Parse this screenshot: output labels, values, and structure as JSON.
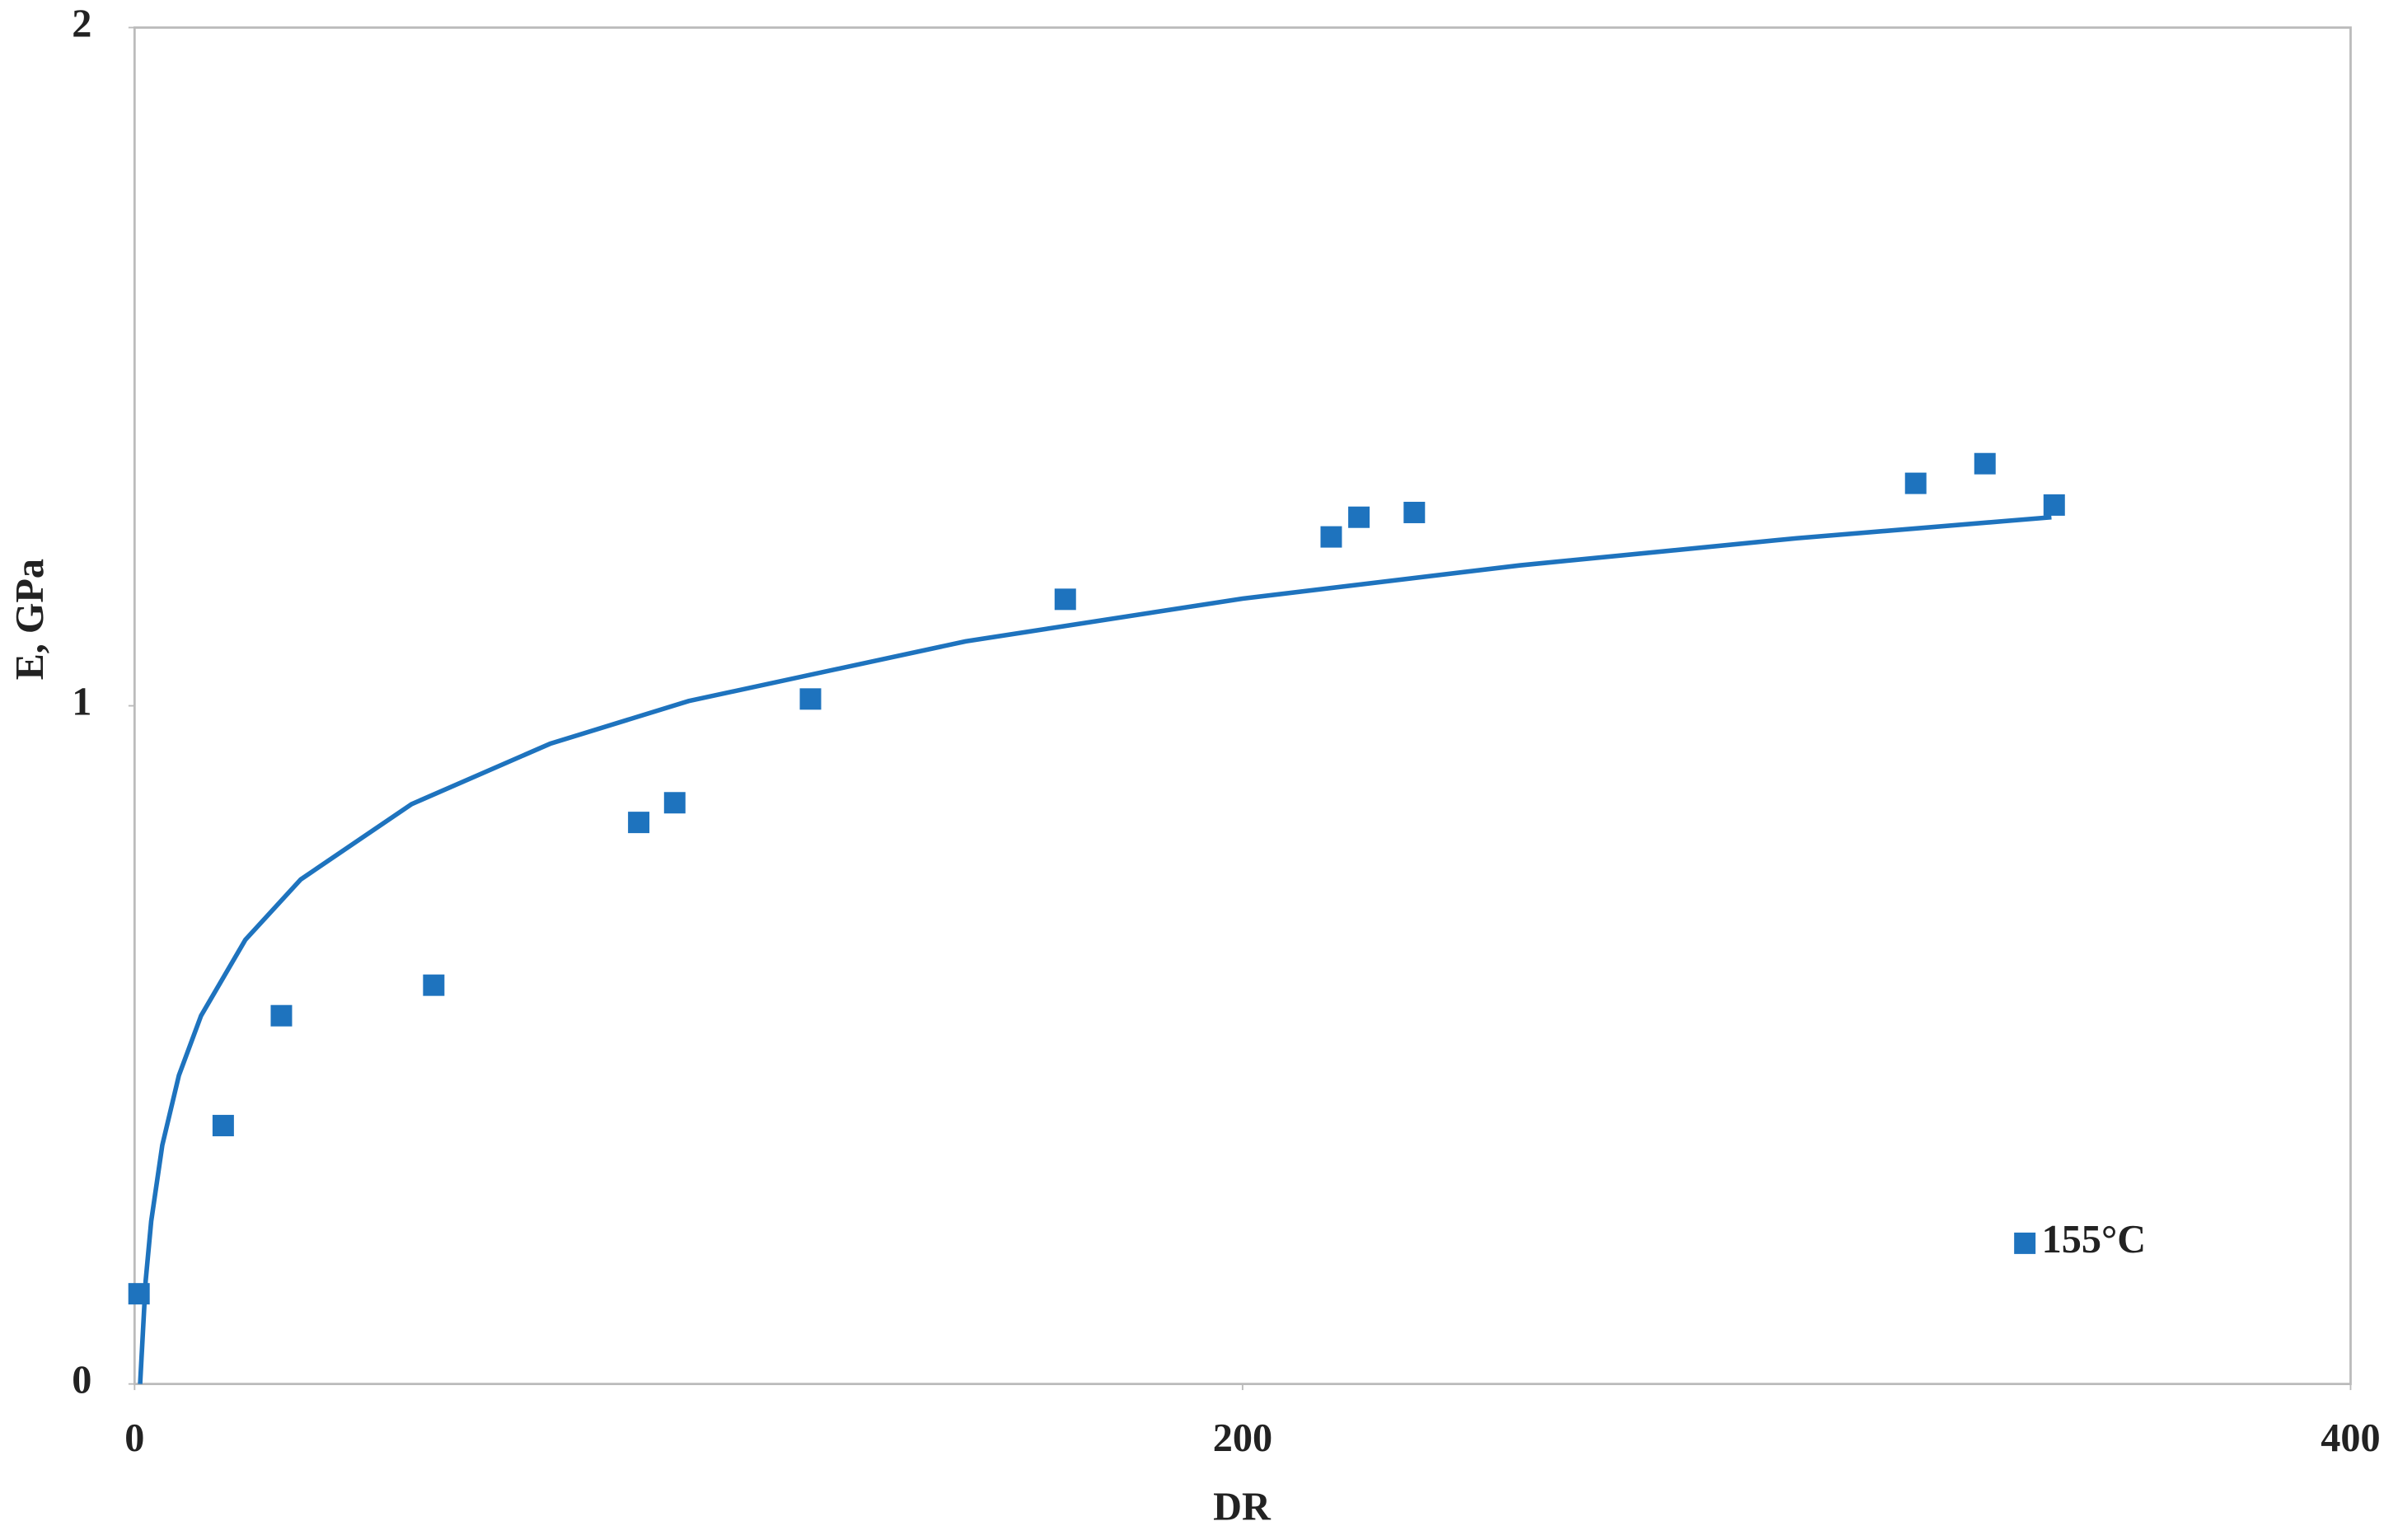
{
  "chart_data": {
    "type": "scatter",
    "x_label": "DR",
    "y_label": "E, GPa",
    "xlim": [
      0,
      400
    ],
    "ylim": [
      0,
      2
    ],
    "xticks": [
      0,
      200,
      400
    ],
    "yticks": [
      0,
      1,
      2
    ],
    "grid": false,
    "legend": "lower right",
    "series": [
      {
        "name": "155°C",
        "color": "#1e73be",
        "x": [
          0.8,
          16,
          26.5,
          54,
          91,
          97.5,
          122,
          168,
          216,
          221,
          231,
          321.5,
          334,
          346.5
        ],
        "values": [
          0.133,
          0.381,
          0.543,
          0.588,
          0.828,
          0.857,
          1.01,
          1.157,
          1.249,
          1.278,
          1.285,
          1.328,
          1.357,
          1.296
        ]
      }
    ],
    "trendline": {
      "color": "#1e73be",
      "x": [
        1,
        2,
        3,
        5,
        8,
        12,
        20,
        30,
        50,
        75,
        100,
        150,
        200,
        250,
        300,
        346
      ],
      "values": [
        0,
        0.152,
        0.24,
        0.352,
        0.455,
        0.543,
        0.655,
        0.744,
        0.855,
        0.944,
        1.007,
        1.095,
        1.158,
        1.207,
        1.247,
        1.278
      ]
    }
  }
}
